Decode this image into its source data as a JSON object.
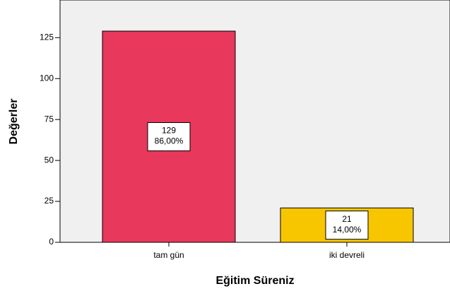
{
  "chart_data": {
    "type": "bar",
    "x_label": "Eğitim Süreniz",
    "y_label": "Değerler",
    "categories": [
      "tam gün",
      "iki devreli"
    ],
    "values": [
      129,
      21
    ],
    "percent_labels": [
      "86,00%",
      "14,00%"
    ],
    "colors": [
      "#e8385c",
      "#f7c600"
    ],
    "ylim": [
      0,
      148
    ],
    "yticks": [
      0,
      25,
      50,
      75,
      100,
      125
    ],
    "grid": false
  }
}
